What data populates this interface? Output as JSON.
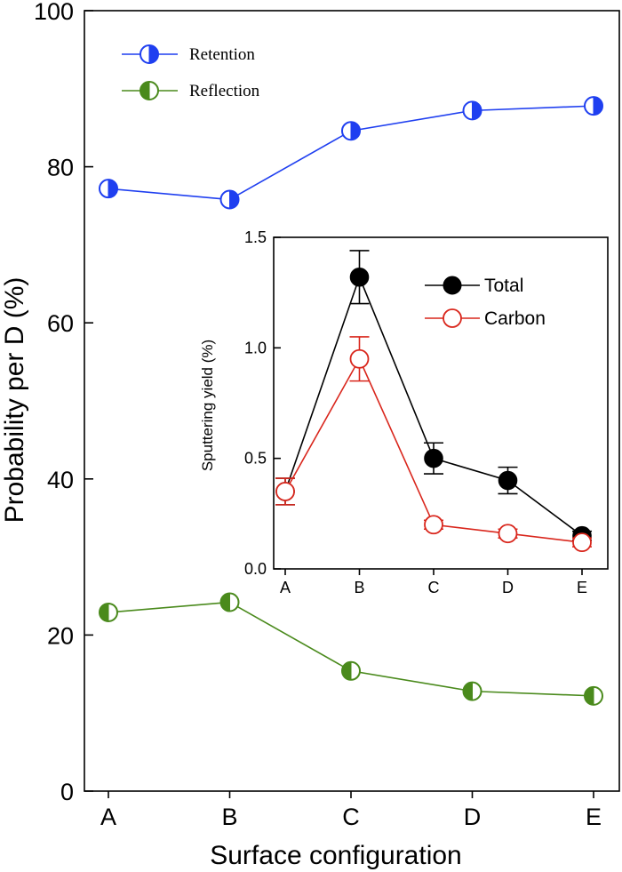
{
  "chart_data": [
    {
      "type": "line",
      "title": "",
      "xlabel": "Surface configuration",
      "ylabel": "Probability per D (%)",
      "categories": [
        "A",
        "B",
        "C",
        "D",
        "E"
      ],
      "ylim": [
        0,
        100
      ],
      "yticks": [
        0,
        20,
        40,
        60,
        80,
        100
      ],
      "legend_position": "top-left",
      "grid": false,
      "series": [
        {
          "name": "Retention",
          "values": [
            77.2,
            75.8,
            84.6,
            87.2,
            87.8
          ],
          "color": "#1f3ff0",
          "marker": "half-filled-circle-left"
        },
        {
          "name": "Reflection",
          "values": [
            22.9,
            24.2,
            15.4,
            12.8,
            12.2
          ],
          "color": "#4a8a1c",
          "marker": "half-filled-circle-right"
        }
      ]
    },
    {
      "type": "line",
      "title": "",
      "xlabel": "",
      "ylabel": "Sputtering yield (%)",
      "categories": [
        "A",
        "B",
        "C",
        "D",
        "E"
      ],
      "ylim": [
        0,
        1.5
      ],
      "yticks": [
        "0.0",
        "0.5",
        "1.0",
        "1.5"
      ],
      "legend_position": "top-right",
      "grid": false,
      "series": [
        {
          "name": "Total",
          "values": [
            0.35,
            1.32,
            0.5,
            0.4,
            0.15
          ],
          "errors": [
            0.06,
            0.12,
            0.07,
            0.06,
            0.02
          ],
          "color": "#000000",
          "marker": "filled-circle"
        },
        {
          "name": "Carbon",
          "values": [
            0.35,
            0.95,
            0.2,
            0.16,
            0.12
          ],
          "errors": [
            0.06,
            0.1,
            0.02,
            0.02,
            0.02
          ],
          "color": "#d9261c",
          "marker": "open-circle"
        }
      ]
    }
  ]
}
